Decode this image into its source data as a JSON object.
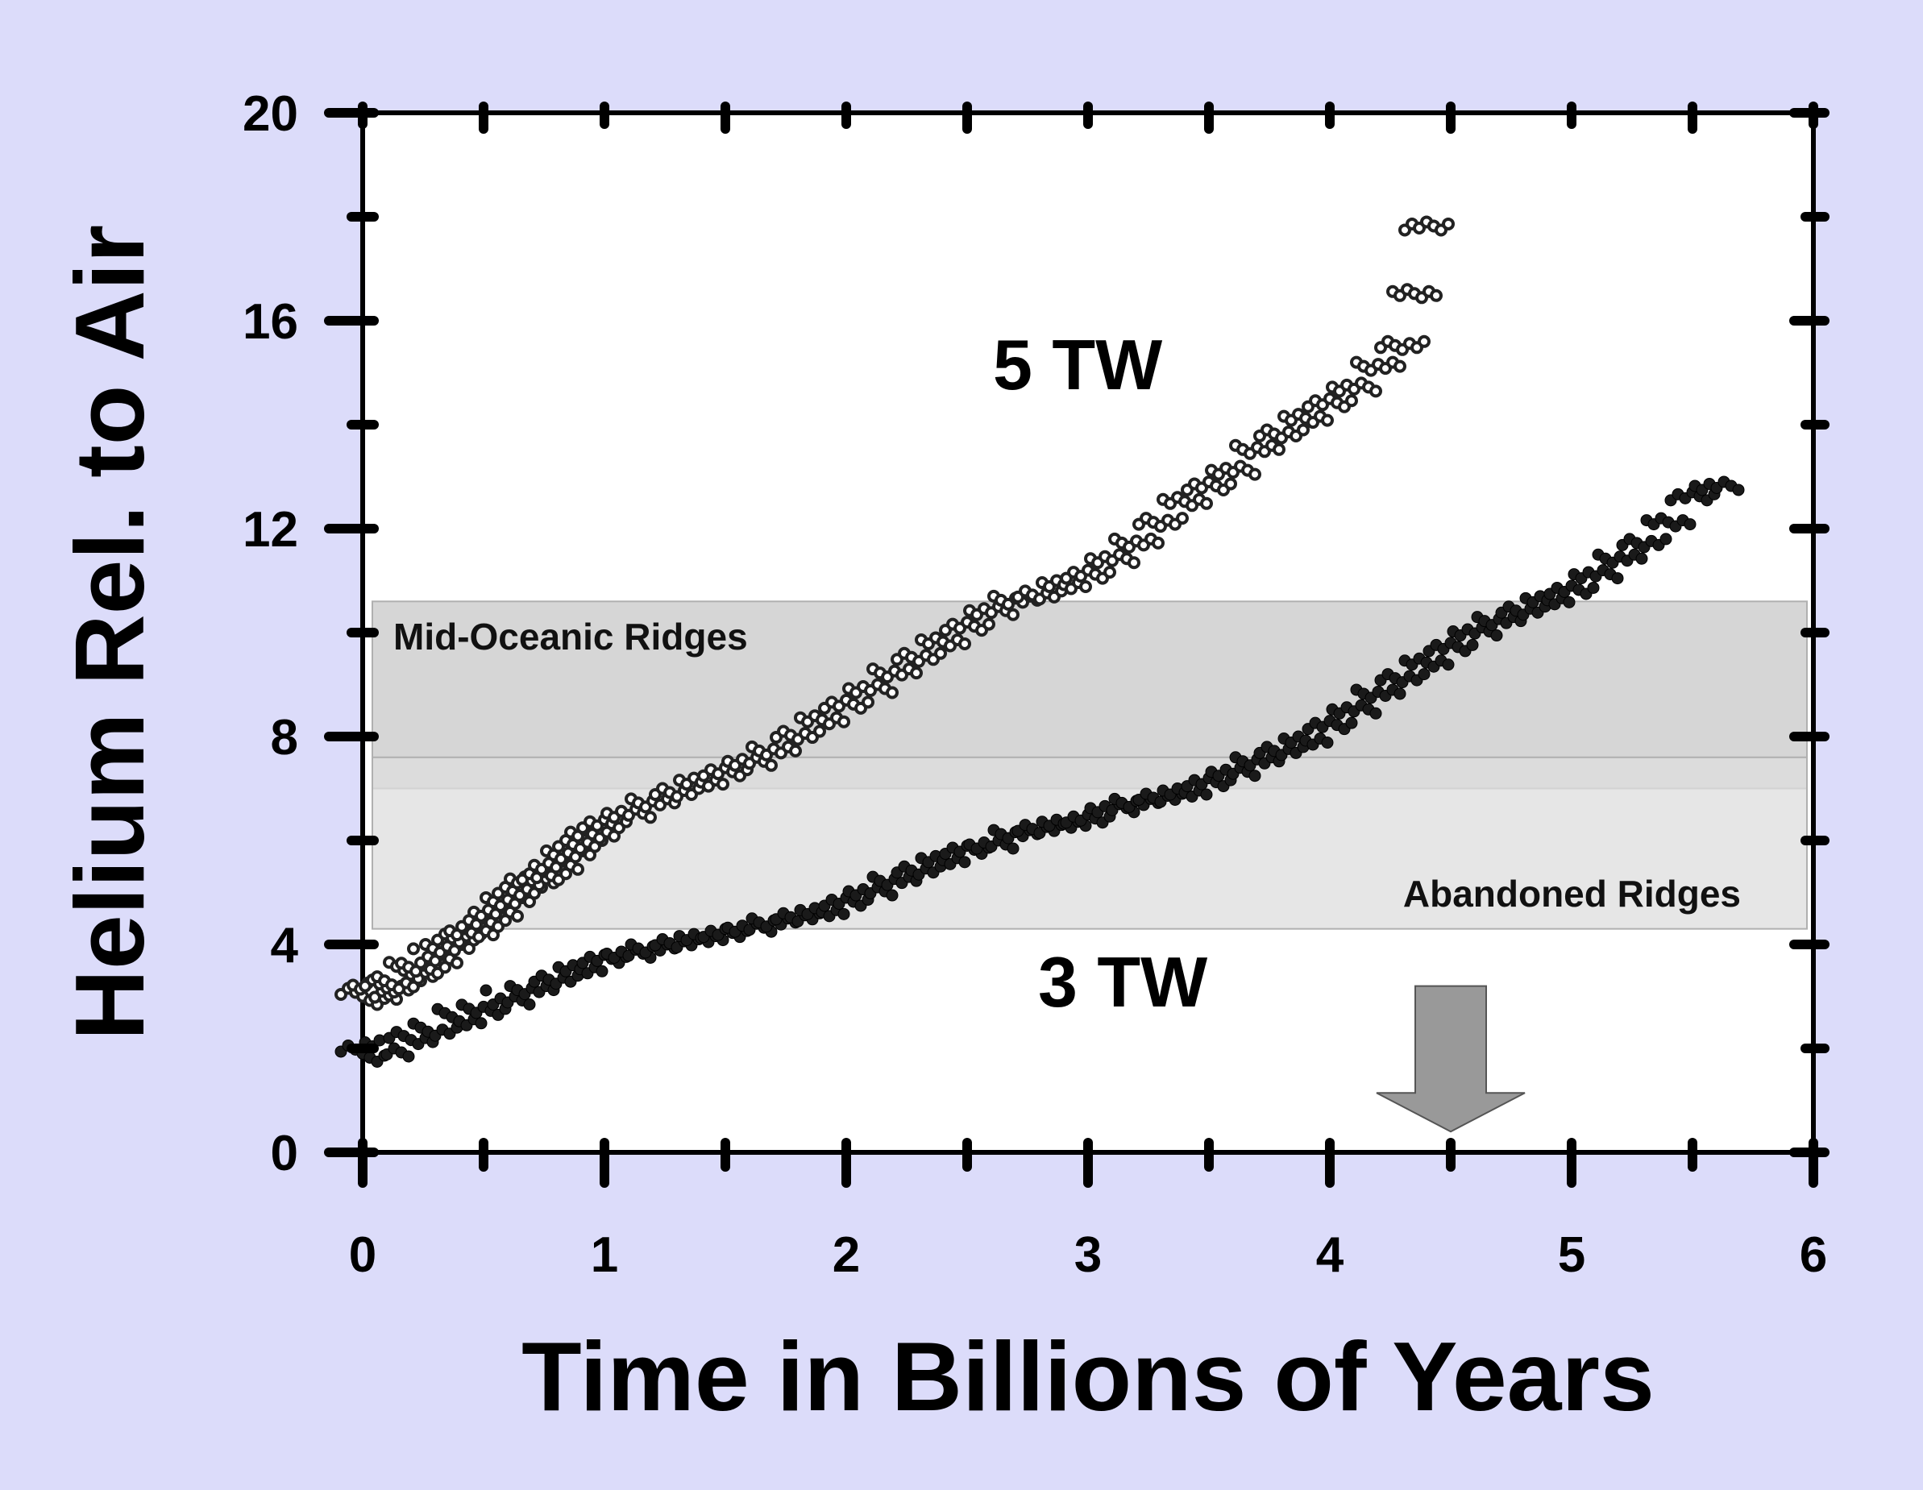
{
  "chart_data": {
    "type": "scatter",
    "title": "",
    "xlabel": "Time in Billions of Years",
    "ylabel": "Helium Rel. to Air",
    "xlim": [
      0,
      6
    ],
    "ylim": [
      0,
      20
    ],
    "x_ticks": [
      "0",
      "1",
      "2",
      "3",
      "4",
      "5",
      "6"
    ],
    "y_ticks": [
      "0",
      "4",
      "8",
      "12",
      "16",
      "20"
    ],
    "grid": false,
    "legend": "none",
    "bands": [
      {
        "label": "Mid-Oceanic Ridges",
        "y_range": [
          7.0,
          10.6
        ],
        "color": "#c8c8c8"
      },
      {
        "label": "Abandoned Ridges",
        "y_range": [
          4.3,
          7.6
        ],
        "color": "#dedede"
      }
    ],
    "annotations": [
      {
        "text": "5 TW",
        "x": 2.95,
        "y": 15.2
      },
      {
        "text": "3 TW",
        "x": 3.15,
        "y": 3.2
      }
    ],
    "marker": {
      "label": "",
      "x": 4.5,
      "y_from": 3.2,
      "y_to": 0.4,
      "color": "#999999"
    },
    "series": [
      {
        "label": "5 TW",
        "marker": "open-circle",
        "points": [
          [
            0.0,
            3.0
          ],
          [
            0.05,
            3.1
          ],
          [
            0.1,
            3.2
          ],
          [
            0.15,
            3.3
          ],
          [
            0.2,
            3.5
          ],
          [
            0.25,
            3.6
          ],
          [
            0.3,
            3.8
          ],
          [
            0.35,
            4.0
          ],
          [
            0.4,
            4.2
          ],
          [
            0.45,
            4.3
          ],
          [
            0.5,
            4.5
          ],
          [
            0.55,
            4.7
          ],
          [
            0.6,
            4.9
          ],
          [
            0.65,
            5.1
          ],
          [
            0.7,
            5.3
          ],
          [
            0.75,
            5.4
          ],
          [
            0.8,
            5.6
          ],
          [
            0.85,
            5.8
          ],
          [
            0.9,
            6.0
          ],
          [
            0.95,
            6.2
          ],
          [
            1.0,
            6.4
          ],
          [
            1.1,
            6.6
          ],
          [
            1.2,
            6.8
          ],
          [
            1.3,
            7.0
          ],
          [
            1.4,
            7.2
          ],
          [
            1.5,
            7.4
          ],
          [
            1.6,
            7.6
          ],
          [
            1.7,
            7.8
          ],
          [
            1.8,
            8.1
          ],
          [
            1.9,
            8.4
          ],
          [
            2.0,
            8.7
          ],
          [
            2.1,
            9.0
          ],
          [
            2.2,
            9.3
          ],
          [
            2.3,
            9.6
          ],
          [
            2.4,
            9.9
          ],
          [
            2.5,
            10.2
          ],
          [
            2.6,
            10.5
          ],
          [
            2.7,
            10.7
          ],
          [
            2.8,
            10.8
          ],
          [
            2.9,
            11.0
          ],
          [
            3.0,
            11.2
          ],
          [
            3.1,
            11.5
          ],
          [
            3.2,
            11.8
          ],
          [
            3.3,
            12.2
          ],
          [
            3.4,
            12.6
          ],
          [
            3.5,
            12.9
          ],
          [
            3.6,
            13.2
          ],
          [
            3.7,
            13.6
          ],
          [
            3.8,
            13.9
          ],
          [
            3.9,
            14.2
          ],
          [
            4.0,
            14.5
          ],
          [
            4.1,
            14.8
          ],
          [
            4.2,
            15.2
          ],
          [
            4.3,
            15.6
          ],
          [
            4.35,
            16.6
          ],
          [
            4.4,
            17.9
          ]
        ]
      },
      {
        "label": "3 TW",
        "marker": "filled-circle",
        "points": [
          [
            0.0,
            1.9
          ],
          [
            0.1,
            2.0
          ],
          [
            0.2,
            2.2
          ],
          [
            0.3,
            2.4
          ],
          [
            0.4,
            2.6
          ],
          [
            0.5,
            2.8
          ],
          [
            0.6,
            3.0
          ],
          [
            0.7,
            3.2
          ],
          [
            0.8,
            3.4
          ],
          [
            0.9,
            3.6
          ],
          [
            1.0,
            3.8
          ],
          [
            1.1,
            3.9
          ],
          [
            1.2,
            4.0
          ],
          [
            1.3,
            4.1
          ],
          [
            1.4,
            4.2
          ],
          [
            1.5,
            4.3
          ],
          [
            1.6,
            4.4
          ],
          [
            1.7,
            4.5
          ],
          [
            1.8,
            4.6
          ],
          [
            1.9,
            4.7
          ],
          [
            2.0,
            4.9
          ],
          [
            2.1,
            5.1
          ],
          [
            2.2,
            5.3
          ],
          [
            2.3,
            5.5
          ],
          [
            2.4,
            5.7
          ],
          [
            2.5,
            5.9
          ],
          [
            2.6,
            6.0
          ],
          [
            2.7,
            6.2
          ],
          [
            2.8,
            6.3
          ],
          [
            2.9,
            6.4
          ],
          [
            3.0,
            6.5
          ],
          [
            3.1,
            6.7
          ],
          [
            3.2,
            6.8
          ],
          [
            3.3,
            6.9
          ],
          [
            3.4,
            7.0
          ],
          [
            3.5,
            7.2
          ],
          [
            3.6,
            7.4
          ],
          [
            3.7,
            7.6
          ],
          [
            3.8,
            7.8
          ],
          [
            3.9,
            8.0
          ],
          [
            4.0,
            8.3
          ],
          [
            4.1,
            8.6
          ],
          [
            4.2,
            8.9
          ],
          [
            4.3,
            9.2
          ],
          [
            4.4,
            9.5
          ],
          [
            4.5,
            9.8
          ],
          [
            4.6,
            10.1
          ],
          [
            4.7,
            10.3
          ],
          [
            4.8,
            10.5
          ],
          [
            4.9,
            10.7
          ],
          [
            5.0,
            10.9
          ],
          [
            5.1,
            11.2
          ],
          [
            5.2,
            11.5
          ],
          [
            5.3,
            11.8
          ],
          [
            5.4,
            12.2
          ],
          [
            5.5,
            12.7
          ],
          [
            5.6,
            12.9
          ]
        ]
      }
    ]
  }
}
